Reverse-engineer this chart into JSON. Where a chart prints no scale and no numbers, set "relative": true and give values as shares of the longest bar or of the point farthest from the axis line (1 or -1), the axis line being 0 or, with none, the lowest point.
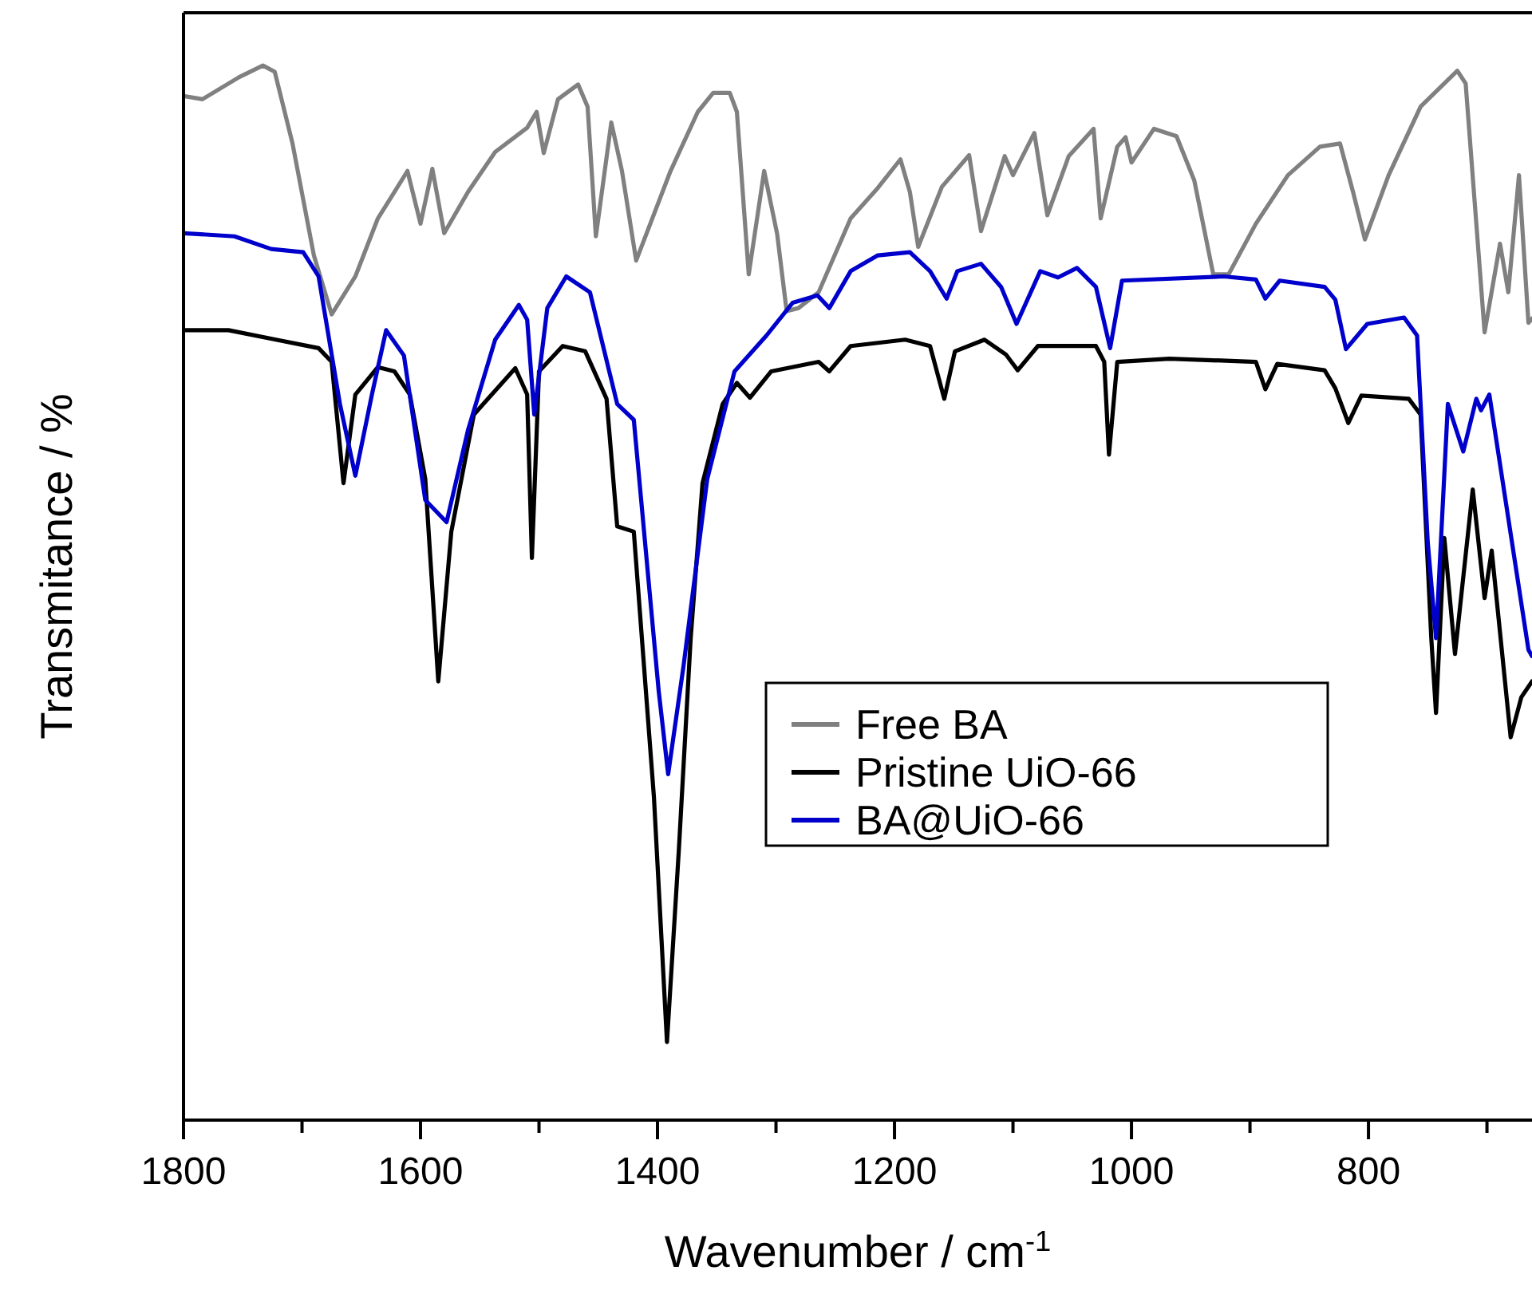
{
  "chart_data": {
    "type": "line",
    "xlabel": "Wavenumber / cm$^{-1}$",
    "ylabel": "Transmitance / %",
    "relative": true,
    "xlim": [
      1800,
      662
    ],
    "xticks": [
      1800,
      {
        "value": 1700,
        "label": null
      },
      1600,
      {
        "value": 1500,
        "label": null
      },
      1400,
      {
        "value": 1300,
        "label": null
      },
      1200,
      {
        "value": 1100,
        "label": null
      },
      1000,
      {
        "value": 900,
        "label": null
      },
      800,
      {
        "value": 700,
        "label": null
      }
    ],
    "legend": "right",
    "series": [
      {
        "name": "Free BA",
        "color": "#808080",
        "x": [
          1800,
          1784,
          1753,
          1733,
          1723,
          1708,
          1690,
          1675,
          1655,
          1636,
          1622,
          1611,
          1600,
          1590,
          1580,
          1560,
          1537,
          1510,
          1502,
          1496,
          1484,
          1467,
          1459,
          1452,
          1439,
          1430,
          1418,
          1389,
          1366,
          1353,
          1339,
          1333,
          1323,
          1310,
          1299,
          1291,
          1281,
          1264,
          1237,
          1214,
          1195,
          1187,
          1180,
          1160,
          1137,
          1127,
          1107,
          1100,
          1082,
          1071,
          1053,
          1032,
          1026,
          1012,
          1005,
          1000,
          981,
          962,
          947,
          931,
          918,
          895,
          868,
          841,
          824,
          813,
          803,
          783,
          756,
          725,
          718,
          702,
          689,
          682,
          673,
          665,
          662
        ],
        "values": [
          0.971,
          0.968,
          0.989,
          1,
          0.994,
          0.926,
          0.82,
          0.764,
          0.8,
          0.855,
          0.88,
          0.9,
          0.85,
          0.902,
          0.841,
          0.88,
          0.918,
          0.941,
          0.956,
          0.917,
          0.968,
          0.982,
          0.961,
          0.838,
          0.946,
          0.9,
          0.815,
          0.9,
          0.956,
          0.974,
          0.974,
          0.956,
          0.802,
          0.9,
          0.84,
          0.767,
          0.77,
          0.785,
          0.855,
          0.884,
          0.911,
          0.88,
          0.828,
          0.885,
          0.915,
          0.843,
          0.914,
          0.896,
          0.936,
          0.858,
          0.914,
          0.94,
          0.855,
          0.923,
          0.932,
          0.908,
          0.94,
          0.933,
          0.891,
          0.802,
          0.802,
          0.85,
          0.896,
          0.923,
          0.926,
          0.88,
          0.835,
          0.896,
          0.961,
          0.995,
          0.983,
          0.747,
          0.831,
          0.785,
          0.896,
          0.756,
          0.76
        ]
      },
      {
        "name": "Pristine UiO-66",
        "color": "#000000",
        "x": [
          1800,
          1762,
          1722,
          1686,
          1675,
          1665,
          1655,
          1636,
          1622,
          1609,
          1596,
          1585,
          1574,
          1555,
          1520,
          1510,
          1506,
          1500,
          1480,
          1461,
          1443,
          1434,
          1420,
          1403,
          1392,
          1382,
          1372,
          1362,
          1345,
          1333,
          1322,
          1304,
          1264,
          1255,
          1237,
          1191,
          1170,
          1158,
          1149,
          1124,
          1106,
          1096,
          1079,
          1030,
          1023,
          1019,
          1012,
          968,
          895,
          887,
          877,
          837,
          828,
          817,
          806,
          766,
          756,
          747,
          743,
          736,
          727,
          712,
          702,
          696,
          680,
          671,
          662
        ],
        "values": [
          0.749,
          0.749,
          0.74,
          0.732,
          0.719,
          0.604,
          0.688,
          0.714,
          0.71,
          0.688,
          0.608,
          0.416,
          0.558,
          0.669,
          0.713,
          0.688,
          0.533,
          0.71,
          0.734,
          0.729,
          0.684,
          0.563,
          0.558,
          0.306,
          0.074,
          0.256,
          0.457,
          0.604,
          0.679,
          0.699,
          0.685,
          0.71,
          0.719,
          0.71,
          0.734,
          0.74,
          0.734,
          0.684,
          0.729,
          0.74,
          0.726,
          0.711,
          0.734,
          0.734,
          0.719,
          0.631,
          0.719,
          0.722,
          0.719,
          0.693,
          0.717,
          0.711,
          0.694,
          0.661,
          0.687,
          0.684,
          0.669,
          0.457,
          0.386,
          0.552,
          0.442,
          0.598,
          0.495,
          0.54,
          0.363,
          0.401,
          0.416
        ]
      },
      {
        "name": "BA@UiO-66",
        "color": "#0000cc",
        "x": [
          1800,
          1757,
          1726,
          1699,
          1686,
          1668,
          1655,
          1641,
          1629,
          1614,
          1596,
          1578,
          1560,
          1537,
          1517,
          1510,
          1504,
          1493,
          1477,
          1457,
          1434,
          1420,
          1399,
          1391,
          1378,
          1358,
          1335,
          1308,
          1286,
          1265,
          1255,
          1237,
          1214,
          1187,
          1170,
          1156,
          1147,
          1127,
          1110,
          1097,
          1077,
          1062,
          1046,
          1030,
          1018,
          1008,
          922,
          895,
          887,
          875,
          837,
          828,
          819,
          801,
          770,
          759,
          750,
          743,
          733,
          720,
          709,
          705,
          698,
          665,
          662
        ],
        "values": [
          0.841,
          0.838,
          0.826,
          0.823,
          0.8,
          0.679,
          0.611,
          0.688,
          0.749,
          0.725,
          0.588,
          0.567,
          0.654,
          0.74,
          0.773,
          0.759,
          0.669,
          0.77,
          0.8,
          0.785,
          0.679,
          0.664,
          0.407,
          0.328,
          0.431,
          0.608,
          0.71,
          0.744,
          0.775,
          0.782,
          0.77,
          0.805,
          0.82,
          0.823,
          0.805,
          0.779,
          0.805,
          0.812,
          0.79,
          0.755,
          0.805,
          0.799,
          0.808,
          0.79,
          0.732,
          0.796,
          0.8,
          0.797,
          0.779,
          0.796,
          0.79,
          0.778,
          0.731,
          0.755,
          0.761,
          0.744,
          0.548,
          0.457,
          0.679,
          0.634,
          0.684,
          0.673,
          0.688,
          0.446,
          0.44
        ]
      }
    ]
  }
}
